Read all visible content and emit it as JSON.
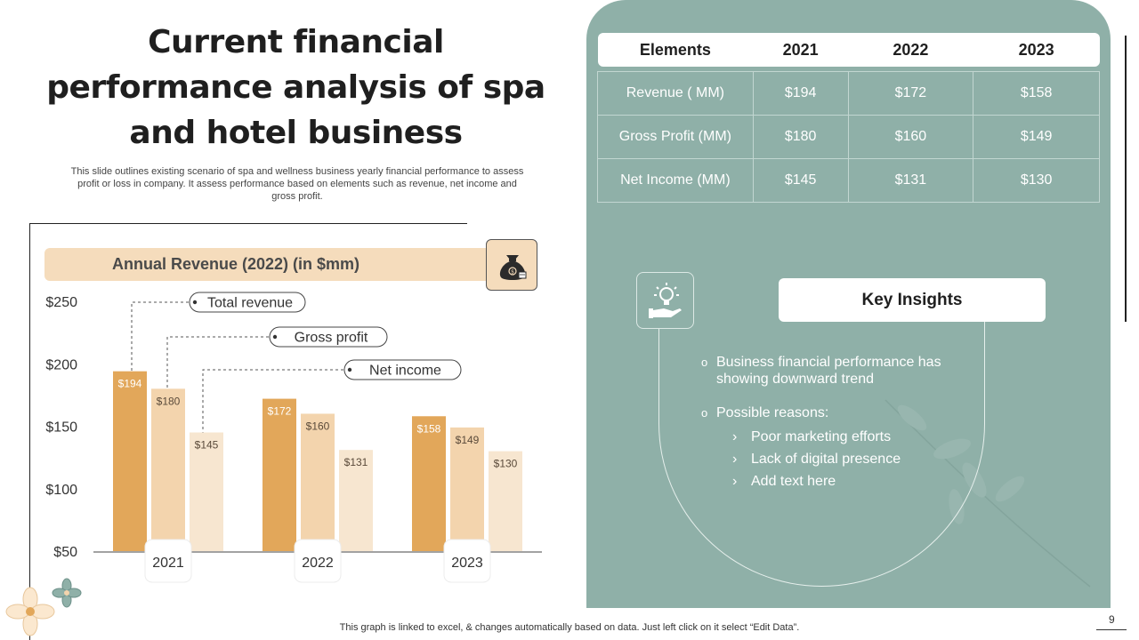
{
  "header": {
    "title": "Current financial performance analysis of spa and hotel business",
    "subtitle": "This slide outlines existing scenario of spa and wellness business yearly financial performance to assess profit or loss in company. It assess performance based on elements such as revenue, net income and gross profit."
  },
  "chart_card": {
    "title": "Annual Revenue (2022) (in $mm)",
    "icon": "money-bag-icon"
  },
  "chart_data": {
    "type": "bar",
    "categories": [
      "2021",
      "2022",
      "2023"
    ],
    "series": [
      {
        "name": "Total revenue",
        "values": [
          194,
          172,
          158
        ],
        "color": "#e2a75a"
      },
      {
        "name": "Gross profit",
        "values": [
          180,
          160,
          149
        ],
        "color": "#f3d4ad"
      },
      {
        "name": "Net income",
        "values": [
          145,
          131,
          130
        ],
        "color": "#f7e6d0"
      }
    ],
    "value_labels": [
      [
        "$194",
        "$172",
        "$158"
      ],
      [
        "$180",
        "$160",
        "$149"
      ],
      [
        "$145",
        "$131",
        "$130"
      ]
    ],
    "yticks": [
      {
        "value": 250,
        "label": "$250"
      },
      {
        "value": 200,
        "label": "$200"
      },
      {
        "value": 150,
        "label": "$150"
      },
      {
        "value": 100,
        "label": "$100"
      },
      {
        "value": 50,
        "label": "$50"
      }
    ],
    "ylim": [
      50,
      250
    ],
    "grid": false,
    "legend": "callouts top"
  },
  "table": {
    "headers": [
      "Elements",
      "2021",
      "2022",
      "2023"
    ],
    "rows": [
      [
        "Revenue ( MM)",
        "$194",
        "$172",
        "$158"
      ],
      [
        "Gross Profit (MM)",
        "$180",
        "$160",
        "$149"
      ],
      [
        "Net Income (MM)",
        "$145",
        "$131",
        "$130"
      ]
    ]
  },
  "insights": {
    "icon": "lightbulb-hand-icon",
    "title": "Key Insights",
    "point1": "Business financial performance has showing downward trend",
    "point2": "Possible reasons:",
    "reasons": [
      "Poor marketing efforts",
      "Lack of digital presence",
      "Add text here"
    ]
  },
  "footer": "This graph is linked to excel, & changes automatically based on data. Just left click on it select “Edit Data”.",
  "page_number": "9",
  "colors": {
    "panel": "#8fb0a8",
    "accent_light": "#f5dcbc",
    "bar_dark": "#e2a75a"
  }
}
